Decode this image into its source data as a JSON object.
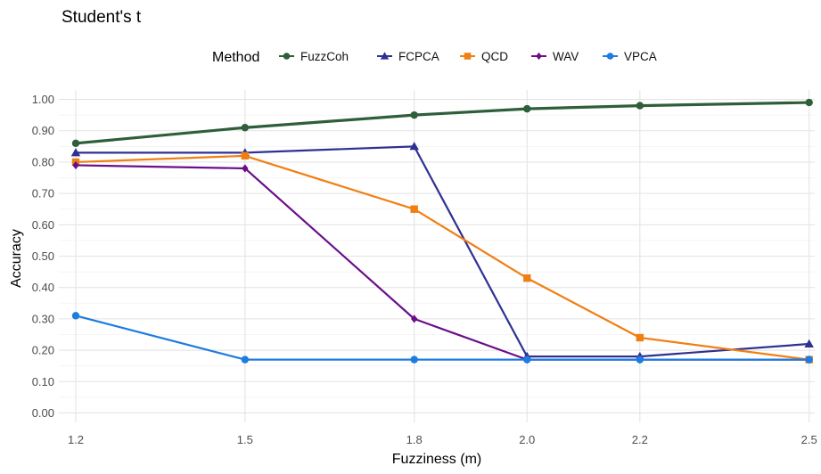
{
  "chart_data": {
    "type": "line",
    "title": "Student's t",
    "xlabel": "Fuzziness (m)",
    "ylabel": "Accuracy",
    "legend_title": "Method",
    "legend_position": "top",
    "x": [
      1.2,
      1.5,
      1.8,
      2.0,
      2.2,
      2.5
    ],
    "x_tick_labels": [
      "1.2",
      "1.5",
      "1.8",
      "2.0",
      "2.2",
      "2.5"
    ],
    "xlim": [
      1.17,
      2.51
    ],
    "ylim": [
      -0.03,
      1.03
    ],
    "y_ticks": [
      0.0,
      0.1,
      0.2,
      0.3,
      0.4,
      0.5,
      0.6,
      0.7,
      0.8,
      0.9,
      1.0
    ],
    "y_tick_labels": [
      "0.00",
      "0.10",
      "0.20",
      "0.30",
      "0.40",
      "0.50",
      "0.60",
      "0.70",
      "0.80",
      "0.90",
      "1.00"
    ],
    "grid": true,
    "series": [
      {
        "name": "FuzzCoh",
        "color": "#2E5E3A",
        "marker": "circle",
        "values": [
          0.86,
          0.91,
          0.95,
          0.97,
          0.98,
          0.99
        ]
      },
      {
        "name": "FCPCA",
        "color": "#2E3192",
        "marker": "triangle",
        "values": [
          0.83,
          0.83,
          0.85,
          0.18,
          0.18,
          0.22
        ]
      },
      {
        "name": "QCD",
        "color": "#F07F13",
        "marker": "square",
        "values": [
          0.8,
          0.82,
          0.65,
          0.43,
          0.24,
          0.17
        ]
      },
      {
        "name": "WAV",
        "color": "#6A0F8A",
        "marker": "diamond",
        "values": [
          0.79,
          0.78,
          0.3,
          0.17,
          0.17,
          0.17
        ]
      },
      {
        "name": "VPCA",
        "color": "#1E7BE0",
        "marker": "circle",
        "values": [
          0.31,
          0.17,
          0.17,
          0.17,
          0.17,
          0.17
        ]
      }
    ]
  }
}
